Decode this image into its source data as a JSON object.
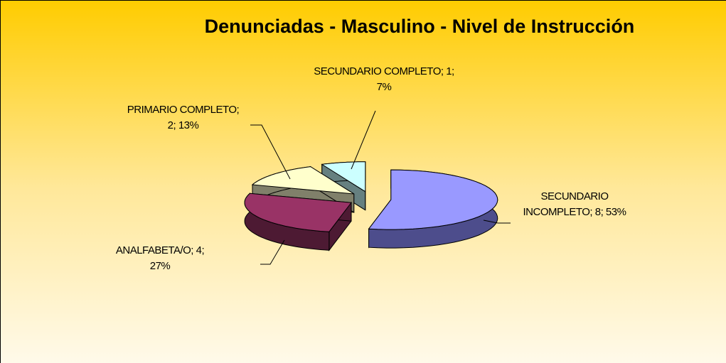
{
  "chart_data": {
    "type": "pie",
    "title": "Denunciadas - Masculino - Nivel de Instrucción",
    "values": [
      8,
      4,
      2,
      1
    ],
    "value_labels": [
      "SECUNDARIO INCOMPLETO; 8; 53%",
      "ANALFABETA/O; 4; 27%",
      "PRIMARIO COMPLETO; 2; 13%",
      "SECUNDARIO COMPLETO; 1; 7%"
    ],
    "colors": [
      "#9999ff",
      "#993366",
      "#ffffcc",
      "#ccffff"
    ],
    "side_colors": [
      "#4d4d8c",
      "#4d1a33",
      "#80806a",
      "#668080"
    ]
  }
}
